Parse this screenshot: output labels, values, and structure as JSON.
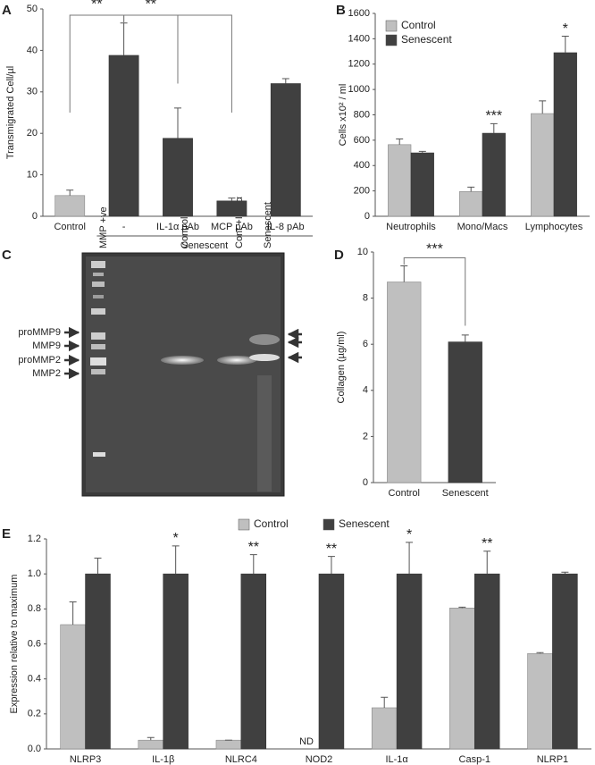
{
  "chart_data": [
    {
      "type": "bar",
      "panel": "A",
      "ylabel": "Transmigrated Cell/µl",
      "categories": [
        "Control",
        "-",
        "IL-1α pAb",
        "MCP pAb",
        "IL-8 pAb"
      ],
      "values": [
        5,
        38.8,
        18.8,
        3.7,
        32
      ],
      "errors": [
        1.3,
        7.8,
        7.3,
        0.7,
        1.2
      ],
      "colors": [
        "#bfbfbf",
        "#404040",
        "#404040",
        "#404040",
        "#404040"
      ],
      "ylim": [
        0,
        50
      ],
      "yticks": [
        0,
        10,
        20,
        30,
        40,
        50
      ],
      "group_label": "Senescent",
      "significance": [
        "**",
        "**"
      ]
    },
    {
      "type": "bar",
      "panel": "B",
      "ylabel": "Cells x10² / ml",
      "categories": [
        "Neutrophils",
        "Mono/Macs",
        "Lymphocytes"
      ],
      "series": [
        {
          "name": "Control",
          "color": "#bfbfbf",
          "values": [
            565,
            195,
            810
          ],
          "errors": [
            45,
            35,
            100
          ]
        },
        {
          "name": "Senescent",
          "color": "#404040",
          "values": [
            500,
            655,
            1290
          ],
          "errors": [
            12,
            75,
            130
          ],
          "significance": [
            null,
            "***",
            "*"
          ]
        }
      ],
      "ylim": [
        0,
        1600
      ],
      "yticks": [
        0,
        200,
        400,
        600,
        800,
        1000,
        1200,
        1400,
        1600
      ],
      "legend": "top-left"
    },
    {
      "type": "bar",
      "panel": "D",
      "ylabel": "Collagen (µg/ml)",
      "categories": [
        "Control",
        "Senescent"
      ],
      "values": [
        8.7,
        6.1
      ],
      "errors": [
        0.7,
        0.3
      ],
      "colors": [
        "#bfbfbf",
        "#404040"
      ],
      "ylim": [
        0,
        10
      ],
      "yticks": [
        0,
        2,
        4,
        6,
        8,
        10
      ],
      "significance": [
        "***"
      ]
    },
    {
      "type": "bar",
      "panel": "E",
      "ylabel": "Expression relative to maximum",
      "categories": [
        "NLRP3",
        "IL-1β",
        "NLRC4",
        "NOD2",
        "IL-1α",
        "Casp-1",
        "NLRP1"
      ],
      "series": [
        {
          "name": "Control",
          "color": "#bfbfbf",
          "values": [
            0.71,
            0.05,
            0.05,
            null,
            0.235,
            0.805,
            0.545
          ],
          "errors": [
            0.13,
            0.015,
            0,
            null,
            0.06,
            0.005,
            0.005
          ],
          "value_labels": [
            null,
            null,
            null,
            "ND",
            null,
            null,
            null
          ]
        },
        {
          "name": "Senescent",
          "color": "#404040",
          "values": [
            1,
            1,
            1,
            1,
            1,
            1,
            1
          ],
          "errors": [
            0.09,
            0.16,
            0.11,
            0.1,
            0.18,
            0.13,
            0.01
          ],
          "significance": [
            null,
            "*",
            "**",
            "**",
            "*",
            "**",
            null
          ]
        }
      ],
      "ylim": [
        0,
        1.2
      ],
      "yticks": [
        {
          "value": 0,
          "label": "0.0"
        },
        0.2,
        0.4,
        0.6,
        0.8,
        {
          "value": 1,
          "label": "1.0"
        },
        1.2
      ],
      "legend": "top-center"
    }
  ],
  "gel": {
    "panel": "C",
    "lanes": [
      "MMP +ve",
      "Control",
      "Cont +IL-1α",
      "Senescent"
    ],
    "markers": [
      "proMMP9",
      "MMP9",
      "proMMP2",
      "MMP2"
    ]
  }
}
